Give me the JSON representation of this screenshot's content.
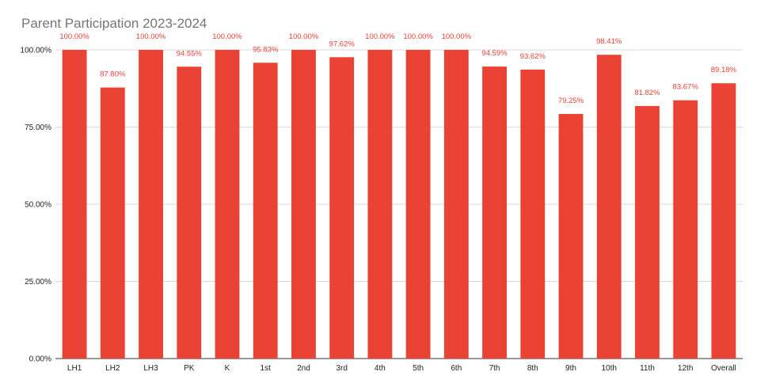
{
  "chart_data": {
    "type": "bar",
    "title": "Parent Participation 2023-2024",
    "xlabel": "",
    "ylabel": "",
    "ylim": [
      0,
      100
    ],
    "y_ticks": [
      0,
      25,
      50,
      75,
      100
    ],
    "y_tick_labels": [
      "0.00%",
      "25.00%",
      "50.00%",
      "75.00%",
      "100.00%"
    ],
    "grid": true,
    "legend": "none",
    "bar_color": "#ea4335",
    "label_color": "#ea4335",
    "categories": [
      "LH1",
      "LH2",
      "LH3",
      "PK",
      "K",
      "1st",
      "2nd",
      "3rd",
      "4th",
      "5th",
      "6th",
      "7th",
      "8th",
      "9th",
      "10th",
      "11th",
      "12th",
      "Overall"
    ],
    "values": [
      100.0,
      87.8,
      100.0,
      94.55,
      100.0,
      95.83,
      100.0,
      97.62,
      100.0,
      100.0,
      100.0,
      94.59,
      93.62,
      79.25,
      98.41,
      81.82,
      83.67,
      89.18
    ],
    "data_labels": [
      "100.00%",
      "87.80%",
      "100.00%",
      "94.55%",
      "100.00%",
      "95.83%",
      "100.00%",
      "97.62%",
      "100.00%",
      "100.00%",
      "100.00%",
      "94.59%",
      "93.62%",
      "79.25%",
      "98.41%",
      "81.82%",
      "83.67%",
      "89.18%"
    ]
  }
}
